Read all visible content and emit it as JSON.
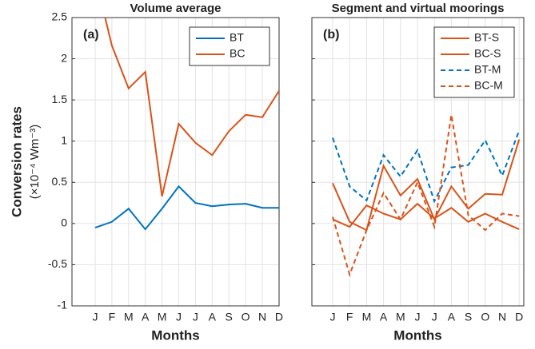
{
  "chart_data": [
    {
      "type": "line",
      "title": "Volume average",
      "annotation": "(a)",
      "xlabel": "Months",
      "ylabel": "Conversion rates",
      "ylabel2": "(×10⁻⁴ Wm⁻³)",
      "categories": [
        "J",
        "F",
        "M",
        "A",
        "M",
        "J",
        "J",
        "A",
        "S",
        "O",
        "N",
        "D"
      ],
      "ylim": [
        -1,
        2.5
      ],
      "yticks": [
        -1,
        -0.5,
        0,
        0.5,
        1,
        1.5,
        2,
        2.5
      ],
      "grid": true,
      "legend": "upper right",
      "series": [
        {
          "name": "BT",
          "color": "#0072bd",
          "line_style": "solid",
          "values": [
            -0.05,
            0.02,
            0.18,
            -0.07,
            0.18,
            0.45,
            0.25,
            0.21,
            0.23,
            0.24,
            0.19,
            0.19
          ]
        },
        {
          "name": "BC",
          "color": "#d95319",
          "line_style": "solid",
          "values": [
            3.0,
            2.16,
            1.64,
            1.84,
            0.33,
            1.21,
            0.98,
            0.83,
            1.12,
            1.32,
            1.29,
            1.61
          ]
        }
      ]
    },
    {
      "type": "line",
      "title": "Segment and virtual moorings",
      "annotation": "(b)",
      "xlabel": "Months",
      "categories": [
        "J",
        "F",
        "M",
        "A",
        "M",
        "J",
        "J",
        "A",
        "S",
        "O",
        "N",
        "D"
      ],
      "ylim": [
        -1,
        2.5
      ],
      "yticks": [
        -1,
        -0.5,
        0,
        0.5,
        1,
        1.5,
        2,
        2.5
      ],
      "grid": true,
      "legend": "upper right",
      "series": [
        {
          "name": "BT-S",
          "color": "#d95319",
          "line_style": "solid",
          "values": [
            0.49,
            0.02,
            -0.08,
            0.7,
            0.34,
            0.54,
            0.05,
            0.45,
            0.18,
            0.36,
            0.35,
            1.02
          ]
        },
        {
          "name": "BC-S",
          "color": "#d95319",
          "line_style": "solid",
          "values": [
            0.05,
            -0.04,
            0.22,
            0.12,
            0.05,
            0.24,
            0.06,
            0.19,
            0.02,
            0.12,
            0.02,
            -0.07
          ]
        },
        {
          "name": "BT-M",
          "color": "#0072bd",
          "line_style": "dashed",
          "values": [
            1.04,
            0.45,
            0.28,
            0.83,
            0.57,
            0.89,
            0.27,
            0.68,
            0.71,
            1.01,
            0.58,
            1.13
          ]
        },
        {
          "name": "BC-M",
          "color": "#d95319",
          "line_style": "dashed",
          "values": [
            0.08,
            -0.62,
            -0.08,
            0.37,
            0.05,
            0.5,
            -0.04,
            1.32,
            0.1,
            -0.08,
            0.12,
            0.09
          ]
        }
      ]
    }
  ]
}
